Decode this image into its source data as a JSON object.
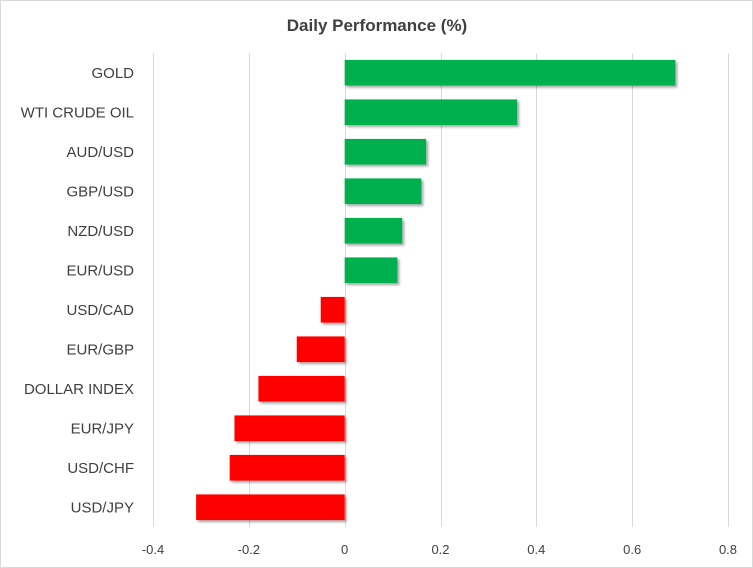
{
  "chart_data": {
    "type": "bar",
    "orientation": "horizontal",
    "title": "Daily Performance (%)",
    "xlabel": "",
    "ylabel": "",
    "categories": [
      "GOLD",
      "WTI CRUDE OIL",
      "AUD/USD",
      "GBP/USD",
      "NZD/USD",
      "EUR/USD",
      "USD/CAD",
      "EUR/GBP",
      "DOLLAR INDEX",
      "EUR/JPY",
      "USD/CHF",
      "USD/JPY"
    ],
    "values": [
      0.69,
      0.36,
      0.17,
      0.16,
      0.12,
      0.11,
      -0.05,
      -0.1,
      -0.18,
      -0.23,
      -0.24,
      -0.31
    ],
    "xlim": [
      -0.4,
      0.8
    ],
    "xticks": [
      -0.4,
      -0.2,
      0,
      0.2,
      0.4,
      0.6,
      0.8
    ],
    "xtick_labels": [
      "-0.4",
      "-0.2",
      "0",
      "0.2",
      "0.4",
      "0.6",
      "0.8"
    ],
    "grid": "vertical",
    "legend": "none",
    "colors": {
      "positive": "#00b050",
      "negative": "#ff0000",
      "grid": "#d9d9d9",
      "text": "#404040"
    }
  }
}
